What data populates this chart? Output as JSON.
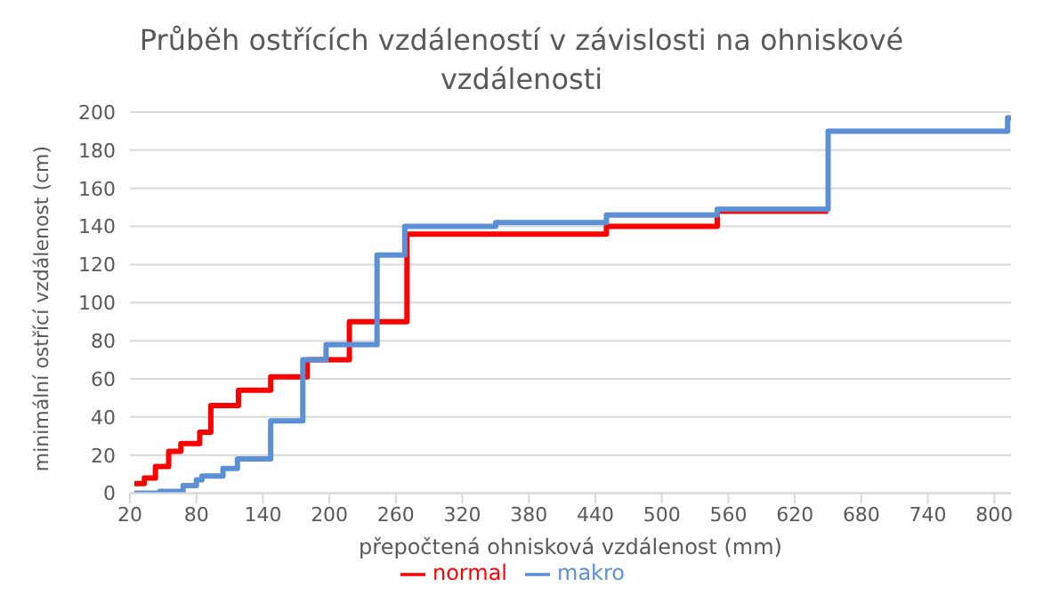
{
  "chart_data": {
    "type": "step",
    "title": "Průběh ostřících vzdáleností v závislosti na ohniskové vzdálenosti",
    "xlabel": "přepočtená ohnisková vzdálenost (mm)",
    "ylabel": "minimální ostřící vzdálenost (cm)",
    "series": [
      {
        "name": "normal",
        "color": "#ff0000",
        "x": [
          24,
          33,
          43,
          55,
          66,
          83,
          93,
          118,
          147,
          180,
          218,
          270,
          350,
          450,
          550,
          650
        ],
        "values": [
          5,
          8,
          14,
          22,
          26,
          32,
          46,
          54,
          61,
          70,
          90,
          136,
          136,
          140,
          148,
          148
        ]
      },
      {
        "name": "makro",
        "color": "#5b8fd6",
        "x": [
          24,
          47,
          68,
          80,
          85,
          104,
          117,
          147,
          176,
          197,
          243,
          268,
          350,
          450,
          550,
          650,
          812,
          815
        ],
        "values": [
          0,
          1,
          4,
          7,
          9,
          13,
          18,
          38,
          70,
          78,
          125,
          140,
          142,
          146,
          149,
          190,
          197,
          197
        ]
      }
    ],
    "xlim": [
      20,
      815
    ],
    "xticks": [
      20,
      80,
      140,
      200,
      260,
      320,
      380,
      440,
      500,
      560,
      620,
      680,
      740,
      800
    ],
    "ylim": [
      0,
      200
    ],
    "yticks": [
      0,
      20,
      40,
      60,
      80,
      100,
      120,
      140,
      160,
      180,
      200
    ],
    "grid": "y",
    "legend": "bottom",
    "line_style": "solid",
    "marker": "none"
  }
}
